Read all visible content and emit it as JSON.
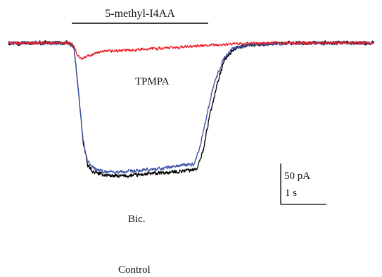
{
  "chart_data": {
    "type": "line",
    "title": "",
    "xlabel": "",
    "ylabel": "",
    "annotations": {
      "drug_bar_label": "5-methyl-I4AA",
      "tpmpa": "TPMPA",
      "bic": "Bic.",
      "control": "Control"
    },
    "scale_bar": {
      "y_label": "50 pA",
      "x_label": "1 s",
      "y_value_pA": 50,
      "x_value_s": 1
    },
    "drug_application_s": [
      0.0,
      4.0
    ],
    "x_range_s": [
      -2.1,
      9.9
    ],
    "y_range_pA": [
      -170,
      12
    ],
    "series": [
      {
        "name": "Control",
        "color": "#000000",
        "noise_pA": 3.2,
        "points": [
          [
            -2.1,
            0
          ],
          [
            -0.1,
            0
          ],
          [
            0.05,
            -5
          ],
          [
            0.2,
            -60
          ],
          [
            0.35,
            -120
          ],
          [
            0.5,
            -150
          ],
          [
            0.7,
            -158
          ],
          [
            1.0,
            -161
          ],
          [
            1.5,
            -163
          ],
          [
            2.0,
            -162
          ],
          [
            2.5,
            -160
          ],
          [
            3.0,
            -159
          ],
          [
            3.5,
            -157
          ],
          [
            4.1,
            -154
          ],
          [
            4.3,
            -130
          ],
          [
            4.5,
            -90
          ],
          [
            4.75,
            -50
          ],
          [
            5.0,
            -20
          ],
          [
            5.3,
            -7
          ],
          [
            5.8,
            -2
          ],
          [
            6.5,
            -1
          ],
          [
            7.5,
            0
          ],
          [
            9.9,
            0
          ]
        ]
      },
      {
        "name": "Bic.",
        "color": "#3a4fa8",
        "noise_pA": 2.8,
        "points": [
          [
            -2.1,
            0
          ],
          [
            -0.1,
            0
          ],
          [
            0.05,
            -5
          ],
          [
            0.2,
            -60
          ],
          [
            0.35,
            -118
          ],
          [
            0.5,
            -145
          ],
          [
            0.7,
            -153
          ],
          [
            1.0,
            -157
          ],
          [
            1.5,
            -158
          ],
          [
            2.0,
            -157
          ],
          [
            2.5,
            -155
          ],
          [
            3.0,
            -153
          ],
          [
            3.5,
            -150
          ],
          [
            4.0,
            -148
          ],
          [
            4.2,
            -125
          ],
          [
            4.4,
            -90
          ],
          [
            4.65,
            -50
          ],
          [
            4.95,
            -20
          ],
          [
            5.25,
            -7
          ],
          [
            5.8,
            -2
          ],
          [
            6.5,
            -1
          ],
          [
            7.5,
            0
          ],
          [
            9.9,
            0
          ]
        ]
      },
      {
        "name": "TPMPA",
        "color": "#ee1c24",
        "noise_pA": 2.3,
        "points": [
          [
            -2.1,
            0
          ],
          [
            -0.1,
            0
          ],
          [
            0.05,
            -4
          ],
          [
            0.15,
            -14
          ],
          [
            0.3,
            -20
          ],
          [
            0.5,
            -16
          ],
          [
            0.8,
            -12
          ],
          [
            1.2,
            -10
          ],
          [
            1.8,
            -9
          ],
          [
            2.5,
            -7
          ],
          [
            3.2,
            -6
          ],
          [
            4.0,
            -4
          ],
          [
            4.5,
            -3
          ],
          [
            5.5,
            -1
          ],
          [
            6.5,
            0
          ],
          [
            9.9,
            0
          ]
        ]
      }
    ]
  }
}
